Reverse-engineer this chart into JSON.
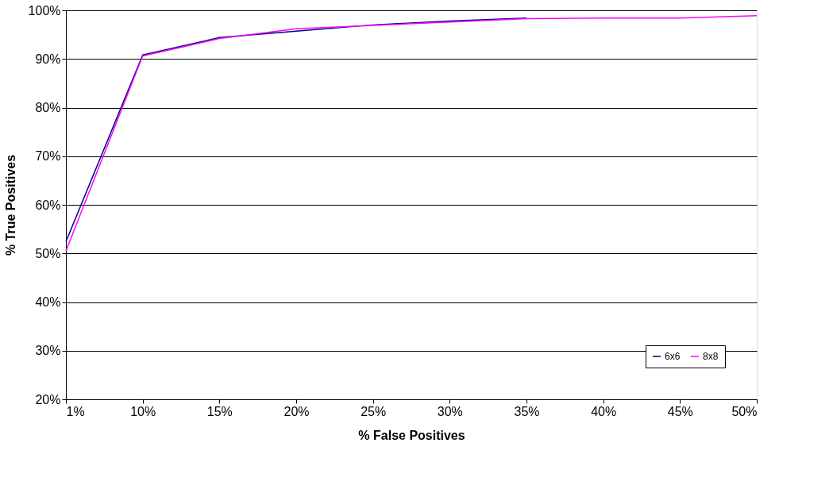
{
  "chart_data": {
    "type": "line",
    "xlabel": "% False Positives",
    "ylabel": "% True Positives",
    "categories": [
      "1%",
      "10%",
      "15%",
      "20%",
      "25%",
      "30%",
      "35%",
      "40%",
      "45%",
      "50%"
    ],
    "series": [
      {
        "name": "6x6",
        "color": "#000080",
        "values": [
          52.4,
          90.8,
          94.4,
          95.7,
          97.0,
          97.8,
          98.4,
          null,
          null,
          null
        ]
      },
      {
        "name": "8x8",
        "color": "#ff00ff",
        "values": [
          50.5,
          90.6,
          94.2,
          96.2,
          96.9,
          97.6,
          98.3,
          98.4,
          98.4,
          98.9
        ]
      }
    ],
    "ylim": [
      20,
      100
    ],
    "yticks": [
      {
        "value": 20,
        "label": "20%"
      },
      {
        "value": 30,
        "label": "30%"
      },
      {
        "value": 40,
        "label": "40%"
      },
      {
        "value": 50,
        "label": "50%"
      },
      {
        "value": 60,
        "label": "60%"
      },
      {
        "value": 70,
        "label": "70%"
      },
      {
        "value": 80,
        "label": "80%"
      },
      {
        "value": 90,
        "label": "90%"
      },
      {
        "value": 100,
        "label": "100%"
      }
    ],
    "grid": "y",
    "legend": "bottom right",
    "marker": "none",
    "line_style": "solid"
  }
}
